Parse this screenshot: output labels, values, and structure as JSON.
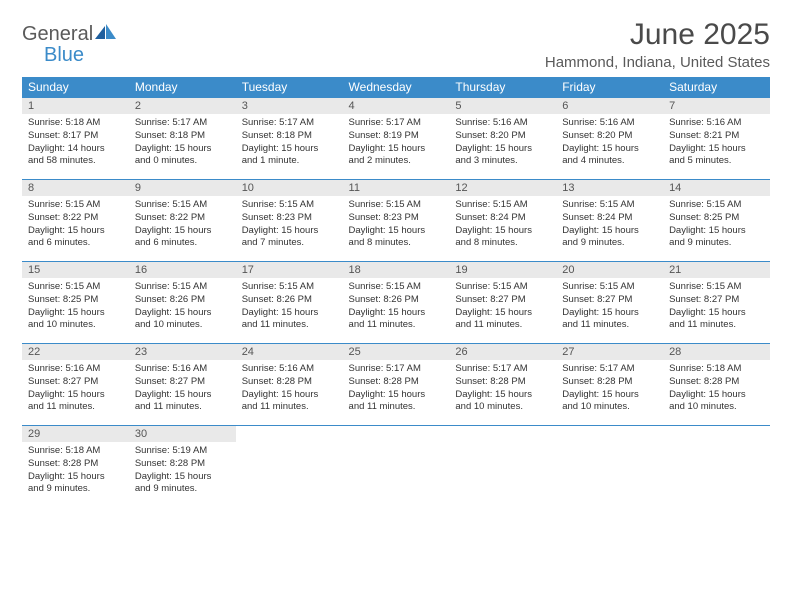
{
  "logo": {
    "line1": "General",
    "line2": "Blue"
  },
  "title": "June 2025",
  "location": "Hammond, Indiana, United States",
  "colors": {
    "header_bg": "#3b8bc9",
    "header_fg": "#ffffff",
    "daynum_bg": "#e9e9e9",
    "rule": "#3b8bc9",
    "logo_gray": "#5a5a5a",
    "logo_blue": "#3b8bc9"
  },
  "weekdays": [
    "Sunday",
    "Monday",
    "Tuesday",
    "Wednesday",
    "Thursday",
    "Friday",
    "Saturday"
  ],
  "weeks": [
    [
      {
        "n": "1",
        "sr": "5:18 AM",
        "ss": "8:17 PM",
        "dl": "14 hours and 58 minutes."
      },
      {
        "n": "2",
        "sr": "5:17 AM",
        "ss": "8:18 PM",
        "dl": "15 hours and 0 minutes."
      },
      {
        "n": "3",
        "sr": "5:17 AM",
        "ss": "8:18 PM",
        "dl": "15 hours and 1 minute."
      },
      {
        "n": "4",
        "sr": "5:17 AM",
        "ss": "8:19 PM",
        "dl": "15 hours and 2 minutes."
      },
      {
        "n": "5",
        "sr": "5:16 AM",
        "ss": "8:20 PM",
        "dl": "15 hours and 3 minutes."
      },
      {
        "n": "6",
        "sr": "5:16 AM",
        "ss": "8:20 PM",
        "dl": "15 hours and 4 minutes."
      },
      {
        "n": "7",
        "sr": "5:16 AM",
        "ss": "8:21 PM",
        "dl": "15 hours and 5 minutes."
      }
    ],
    [
      {
        "n": "8",
        "sr": "5:15 AM",
        "ss": "8:22 PM",
        "dl": "15 hours and 6 minutes."
      },
      {
        "n": "9",
        "sr": "5:15 AM",
        "ss": "8:22 PM",
        "dl": "15 hours and 6 minutes."
      },
      {
        "n": "10",
        "sr": "5:15 AM",
        "ss": "8:23 PM",
        "dl": "15 hours and 7 minutes."
      },
      {
        "n": "11",
        "sr": "5:15 AM",
        "ss": "8:23 PM",
        "dl": "15 hours and 8 minutes."
      },
      {
        "n": "12",
        "sr": "5:15 AM",
        "ss": "8:24 PM",
        "dl": "15 hours and 8 minutes."
      },
      {
        "n": "13",
        "sr": "5:15 AM",
        "ss": "8:24 PM",
        "dl": "15 hours and 9 minutes."
      },
      {
        "n": "14",
        "sr": "5:15 AM",
        "ss": "8:25 PM",
        "dl": "15 hours and 9 minutes."
      }
    ],
    [
      {
        "n": "15",
        "sr": "5:15 AM",
        "ss": "8:25 PM",
        "dl": "15 hours and 10 minutes."
      },
      {
        "n": "16",
        "sr": "5:15 AM",
        "ss": "8:26 PM",
        "dl": "15 hours and 10 minutes."
      },
      {
        "n": "17",
        "sr": "5:15 AM",
        "ss": "8:26 PM",
        "dl": "15 hours and 11 minutes."
      },
      {
        "n": "18",
        "sr": "5:15 AM",
        "ss": "8:26 PM",
        "dl": "15 hours and 11 minutes."
      },
      {
        "n": "19",
        "sr": "5:15 AM",
        "ss": "8:27 PM",
        "dl": "15 hours and 11 minutes."
      },
      {
        "n": "20",
        "sr": "5:15 AM",
        "ss": "8:27 PM",
        "dl": "15 hours and 11 minutes."
      },
      {
        "n": "21",
        "sr": "5:15 AM",
        "ss": "8:27 PM",
        "dl": "15 hours and 11 minutes."
      }
    ],
    [
      {
        "n": "22",
        "sr": "5:16 AM",
        "ss": "8:27 PM",
        "dl": "15 hours and 11 minutes."
      },
      {
        "n": "23",
        "sr": "5:16 AM",
        "ss": "8:27 PM",
        "dl": "15 hours and 11 minutes."
      },
      {
        "n": "24",
        "sr": "5:16 AM",
        "ss": "8:28 PM",
        "dl": "15 hours and 11 minutes."
      },
      {
        "n": "25",
        "sr": "5:17 AM",
        "ss": "8:28 PM",
        "dl": "15 hours and 11 minutes."
      },
      {
        "n": "26",
        "sr": "5:17 AM",
        "ss": "8:28 PM",
        "dl": "15 hours and 10 minutes."
      },
      {
        "n": "27",
        "sr": "5:17 AM",
        "ss": "8:28 PM",
        "dl": "15 hours and 10 minutes."
      },
      {
        "n": "28",
        "sr": "5:18 AM",
        "ss": "8:28 PM",
        "dl": "15 hours and 10 minutes."
      }
    ],
    [
      {
        "n": "29",
        "sr": "5:18 AM",
        "ss": "8:28 PM",
        "dl": "15 hours and 9 minutes."
      },
      {
        "n": "30",
        "sr": "5:19 AM",
        "ss": "8:28 PM",
        "dl": "15 hours and 9 minutes."
      },
      null,
      null,
      null,
      null,
      null
    ]
  ],
  "labels": {
    "sunrise": "Sunrise:",
    "sunset": "Sunset:",
    "daylight": "Daylight:"
  }
}
